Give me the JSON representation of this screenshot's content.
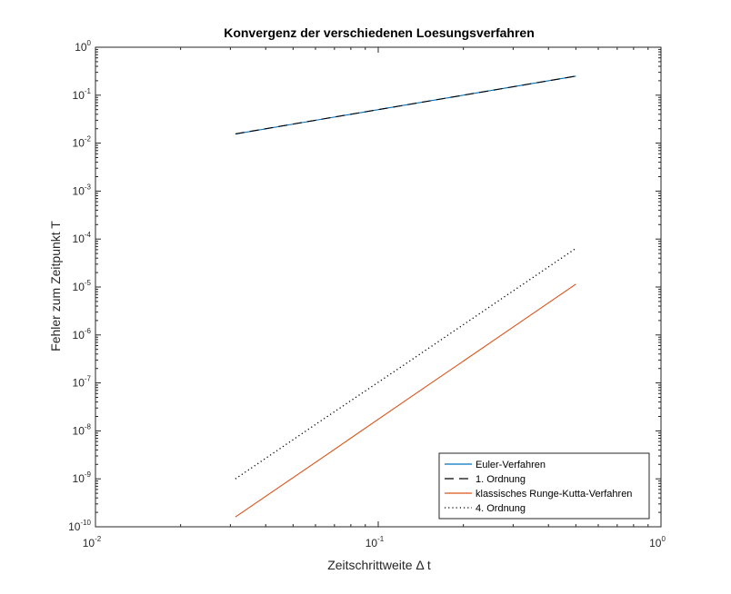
{
  "chart_data": {
    "type": "line",
    "title": "Konvergenz der verschiedenen Loesungsverfahren",
    "xlabel": "Zeitschrittweite Δ t",
    "ylabel": "Fehler zum Zeitpunkt T",
    "xscale": "log",
    "yscale": "log",
    "xlim": [
      0.01,
      1
    ],
    "ylim": [
      1e-10,
      1
    ],
    "grid": false,
    "legend_position": "bottom-right",
    "x_ticks": [
      {
        "base": "10",
        "exp": "-2"
      },
      {
        "base": "10",
        "exp": "-1"
      },
      {
        "base": "10",
        "exp": "0"
      }
    ],
    "y_ticks": [
      {
        "base": "10",
        "exp": "-10"
      },
      {
        "base": "10",
        "exp": "-9"
      },
      {
        "base": "10",
        "exp": "-8"
      },
      {
        "base": "10",
        "exp": "-7"
      },
      {
        "base": "10",
        "exp": "-6"
      },
      {
        "base": "10",
        "exp": "-5"
      },
      {
        "base": "10",
        "exp": "-4"
      },
      {
        "base": "10",
        "exp": "-3"
      },
      {
        "base": "10",
        "exp": "-2"
      },
      {
        "base": "10",
        "exp": "-1"
      },
      {
        "base": "10",
        "exp": "0"
      }
    ],
    "series": [
      {
        "name": "Euler-Verfahren",
        "color": "#0072bd",
        "style": "solid",
        "x": [
          0.03125,
          0.0625,
          0.125,
          0.25,
          0.5
        ],
        "y": [
          0.0155,
          0.0312,
          0.0625,
          0.125,
          0.25
        ]
      },
      {
        "name": "1. Ordnung",
        "color": "#000000",
        "style": "dashed",
        "x": [
          0.03125,
          0.0625,
          0.125,
          0.25,
          0.5
        ],
        "y": [
          0.0156,
          0.0313,
          0.0625,
          0.125,
          0.25
        ]
      },
      {
        "name": "klassisches Runge-Kutta-Verfahren",
        "color": "#d95319",
        "style": "solid",
        "x": [
          0.03125,
          0.0625,
          0.125,
          0.25,
          0.5
        ],
        "y": [
          1.6e-10,
          2.6e-09,
          4.3e-08,
          7e-07,
          1.15e-05
        ]
      },
      {
        "name": "4. Ordnung",
        "color": "#000000",
        "style": "dotted",
        "x": [
          0.03125,
          0.0625,
          0.125,
          0.25,
          0.5
        ],
        "y": [
          1e-09,
          1.6e-08,
          2.5e-07,
          4e-06,
          6.4e-05
        ]
      }
    ]
  }
}
